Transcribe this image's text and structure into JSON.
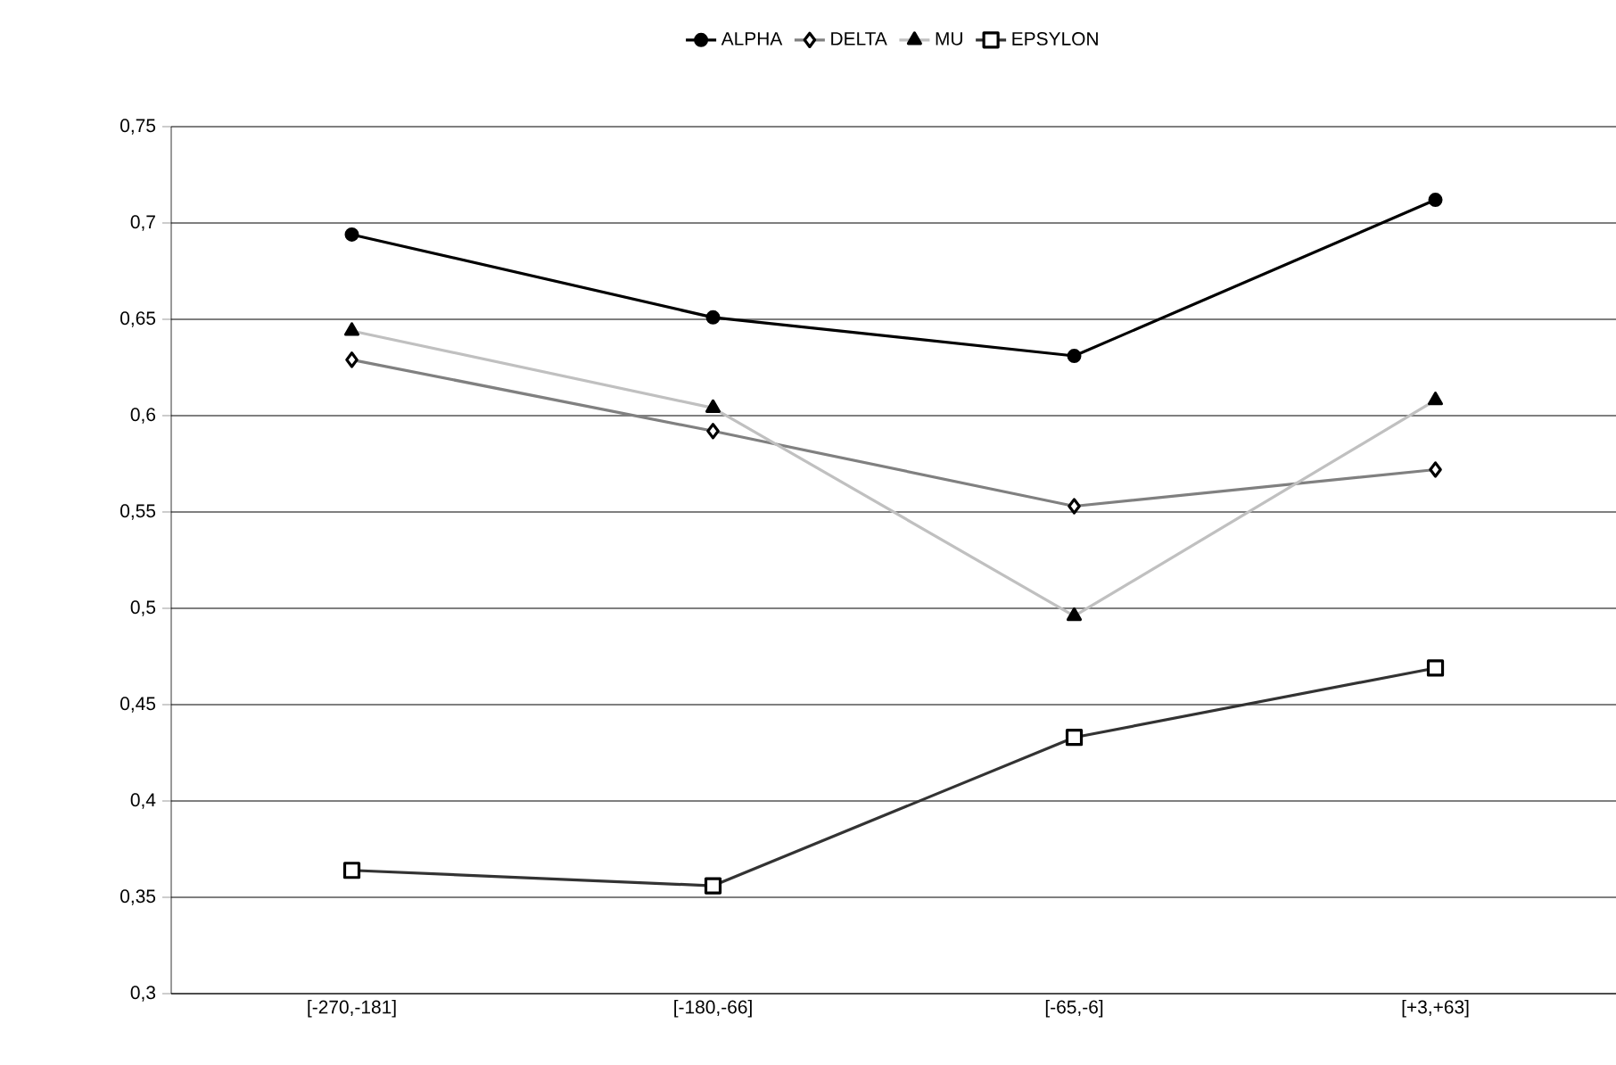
{
  "chart_data": {
    "type": "line",
    "categories": [
      "[-270,-181]",
      "[-180,-66]",
      "[-65,-6]",
      "[+3,+63]"
    ],
    "series": [
      {
        "name": "ALPHA",
        "color": "#000000",
        "marker": "circle",
        "values": [
          0.694,
          0.651,
          0.631,
          0.712
        ]
      },
      {
        "name": "DELTA",
        "color": "#808080",
        "marker": "diamond",
        "values": [
          0.629,
          0.592,
          0.553,
          0.572
        ]
      },
      {
        "name": "MU",
        "color": "#c0c0c0",
        "marker": "triangle",
        "values": [
          0.644,
          0.604,
          0.496,
          0.608
        ]
      },
      {
        "name": "EPSYLON",
        "color": "#333333",
        "marker": "square",
        "values": [
          0.364,
          0.356,
          0.433,
          0.469
        ]
      }
    ],
    "ylim": [
      0.3,
      0.75
    ],
    "yticks": [
      {
        "value": 0.3,
        "label": "0,3"
      },
      {
        "value": 0.35,
        "label": "0,35"
      },
      {
        "value": 0.4,
        "label": "0,4"
      },
      {
        "value": 0.45,
        "label": "0,45"
      },
      {
        "value": 0.5,
        "label": "0,5"
      },
      {
        "value": 0.55,
        "label": "0,55"
      },
      {
        "value": 0.6,
        "label": "0,6"
      },
      {
        "value": 0.65,
        "label": "0,65"
      },
      {
        "value": 0.7,
        "label": "0,7"
      },
      {
        "value": 0.75,
        "label": "0,75"
      }
    ],
    "grid": "y",
    "legend": "top",
    "line_style": "solid"
  }
}
